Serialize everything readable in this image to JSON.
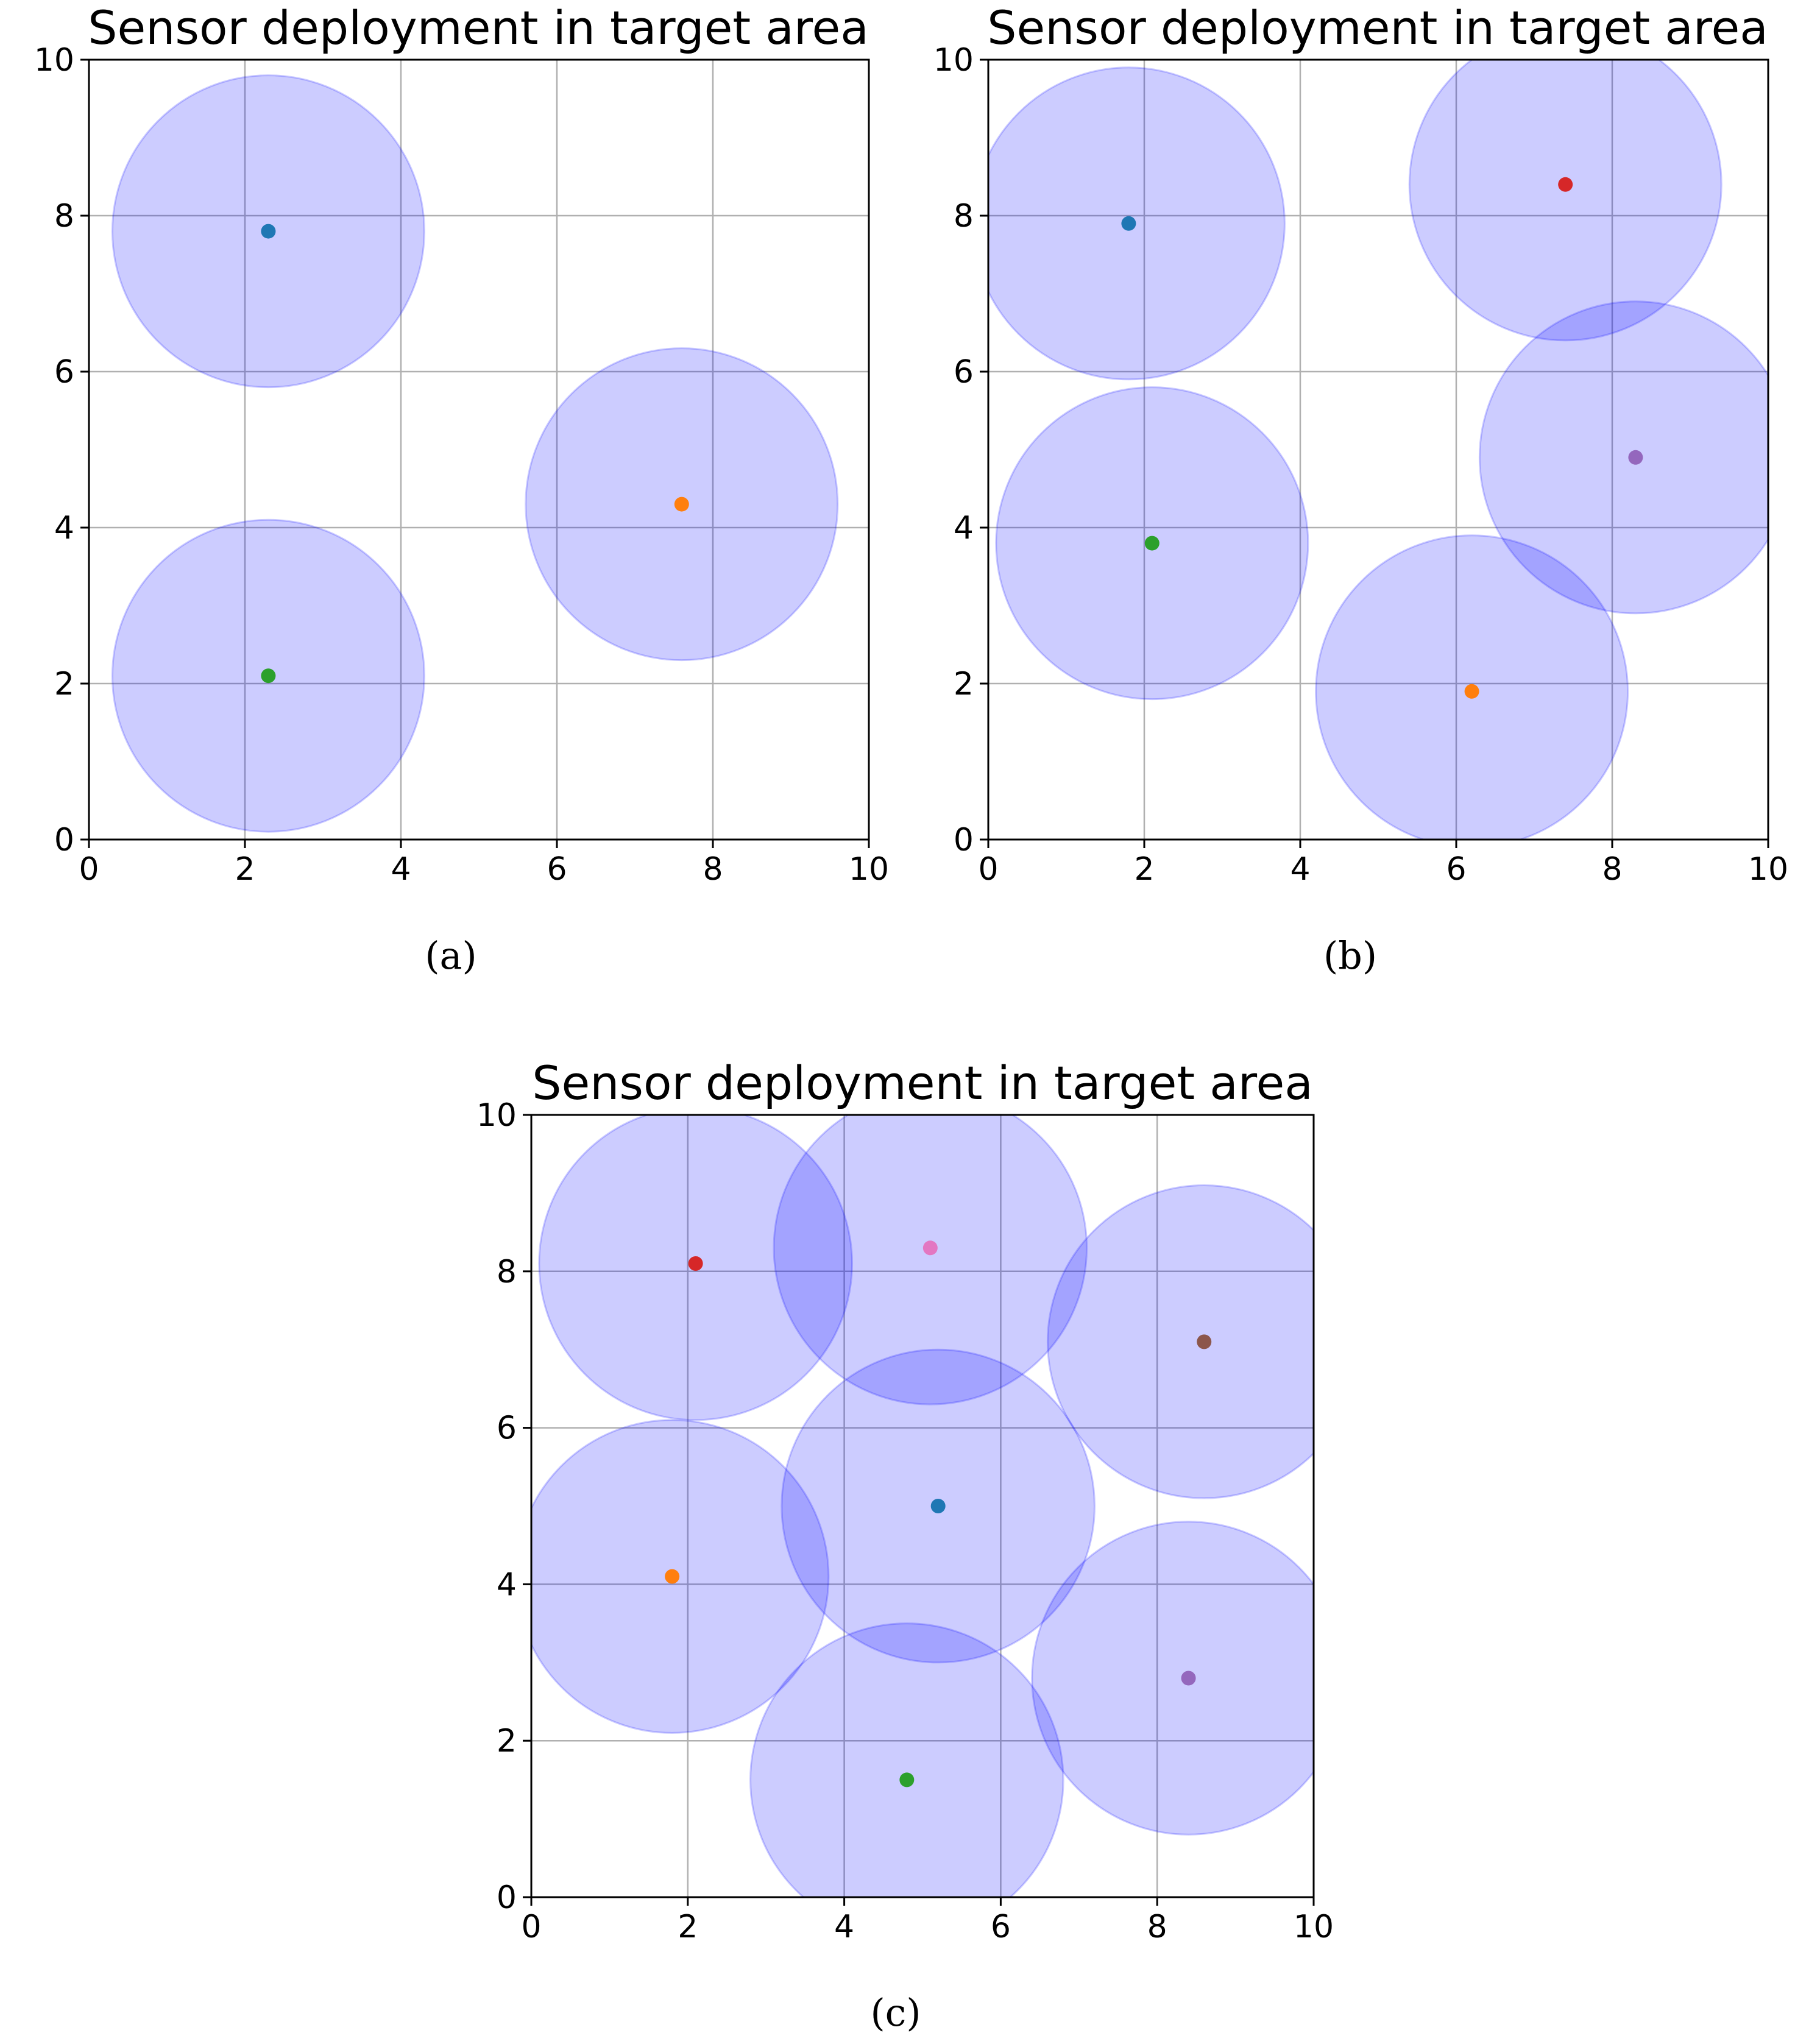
{
  "captions": [
    "(a)",
    "(b)",
    "(c)"
  ],
  "circle_fill": "#0000ff",
  "circle_stroke": "#0000ff",
  "grid_color": "#b0b0b0",
  "chart_data": [
    {
      "type": "scatter",
      "panel": "a",
      "title": "Sensor deployment in target area",
      "xlabel": "",
      "ylabel": "",
      "xlim": [
        0,
        10
      ],
      "ylim": [
        0,
        10
      ],
      "xticks": [
        "0",
        "2",
        "4",
        "6",
        "8",
        "10"
      ],
      "yticks": [
        "0",
        "2",
        "4",
        "6",
        "8",
        "10"
      ],
      "grid": true,
      "sensing_radius": 2,
      "points": [
        {
          "x": 2.3,
          "y": 7.8,
          "color": "#1f77b4"
        },
        {
          "x": 7.6,
          "y": 4.3,
          "color": "#ff7f0e"
        },
        {
          "x": 2.3,
          "y": 2.1,
          "color": "#2ca02c"
        }
      ]
    },
    {
      "type": "scatter",
      "panel": "b",
      "title": "Sensor deployment in target area",
      "xlabel": "",
      "ylabel": "",
      "xlim": [
        0,
        10
      ],
      "ylim": [
        0,
        10
      ],
      "xticks": [
        "0",
        "2",
        "4",
        "6",
        "8",
        "10"
      ],
      "yticks": [
        "0",
        "2",
        "4",
        "6",
        "8",
        "10"
      ],
      "grid": true,
      "sensing_radius": 2,
      "points": [
        {
          "x": 1.8,
          "y": 7.9,
          "color": "#1f77b4"
        },
        {
          "x": 6.2,
          "y": 1.9,
          "color": "#ff7f0e"
        },
        {
          "x": 2.1,
          "y": 3.8,
          "color": "#2ca02c"
        },
        {
          "x": 7.4,
          "y": 8.4,
          "color": "#d62728"
        },
        {
          "x": 8.3,
          "y": 4.9,
          "color": "#9467bd"
        }
      ]
    },
    {
      "type": "scatter",
      "panel": "c",
      "title": "Sensor deployment in target area",
      "xlabel": "",
      "ylabel": "",
      "xlim": [
        0,
        10
      ],
      "ylim": [
        0,
        10
      ],
      "xticks": [
        "0",
        "2",
        "4",
        "6",
        "8",
        "10"
      ],
      "yticks": [
        "0",
        "2",
        "4",
        "6",
        "8",
        "10"
      ],
      "grid": true,
      "sensing_radius": 2,
      "points": [
        {
          "x": 5.2,
          "y": 5.0,
          "color": "#1f77b4"
        },
        {
          "x": 1.8,
          "y": 4.1,
          "color": "#ff7f0e"
        },
        {
          "x": 4.8,
          "y": 1.5,
          "color": "#2ca02c"
        },
        {
          "x": 2.1,
          "y": 8.1,
          "color": "#d62728"
        },
        {
          "x": 8.4,
          "y": 2.8,
          "color": "#9467bd"
        },
        {
          "x": 8.6,
          "y": 7.1,
          "color": "#8c564b"
        },
        {
          "x": 5.1,
          "y": 8.3,
          "color": "#e377c2"
        }
      ]
    }
  ]
}
